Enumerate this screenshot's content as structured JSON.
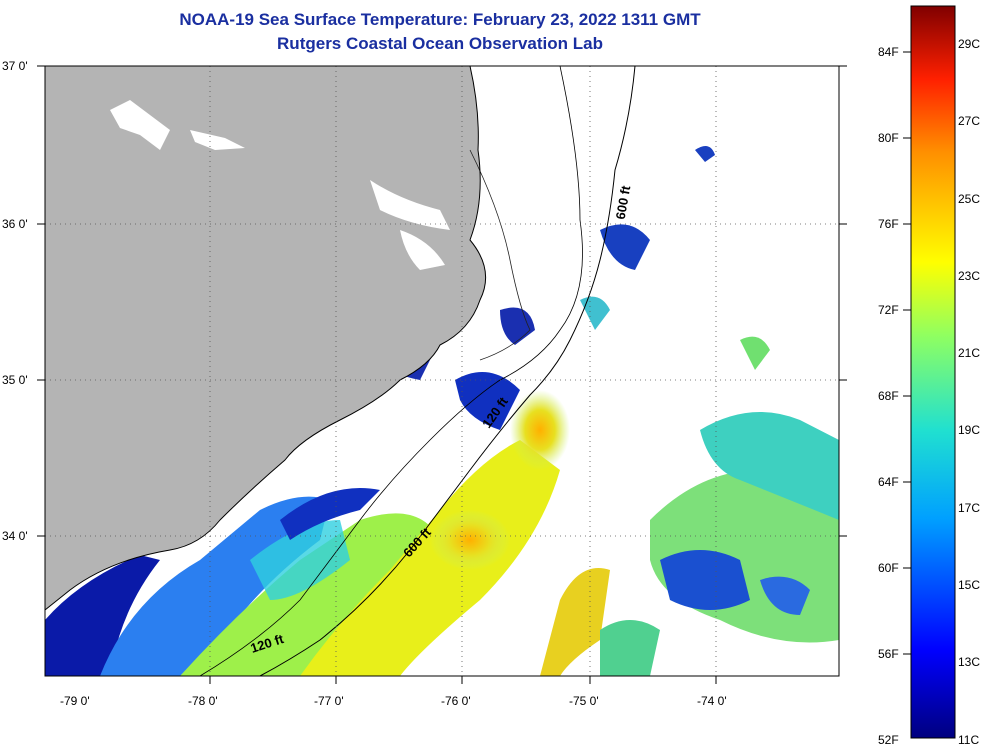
{
  "header": {
    "title": "NOAA-19 Sea Surface Temperature:  February 23, 2022 1311 GMT",
    "subtitle": "Rutgers Coastal Ocean Observation Lab"
  },
  "map": {
    "lat_labels": [
      "37 0'",
      "36 0'",
      "35 0'",
      "34 0'"
    ],
    "lon_labels": [
      "-79 0'",
      "-78 0'",
      "-77 0'",
      "-76 0'",
      "-75 0'",
      "-74 0'"
    ],
    "contour_labels": [
      "600 ft",
      "120 ft",
      "600 ft",
      "120 ft"
    ],
    "colors": {
      "land": "#b4b4b4",
      "ocean_missing": "#ffffff"
    }
  },
  "colorbar": {
    "fahrenheit_labels": [
      "84F",
      "80F",
      "76F",
      "72F",
      "68F",
      "64F",
      "60F",
      "56F",
      "52F"
    ],
    "celsius_labels": [
      "29C",
      "27C",
      "25C",
      "23C",
      "21C",
      "19C",
      "17C",
      "15C",
      "13C",
      "11C"
    ]
  }
}
